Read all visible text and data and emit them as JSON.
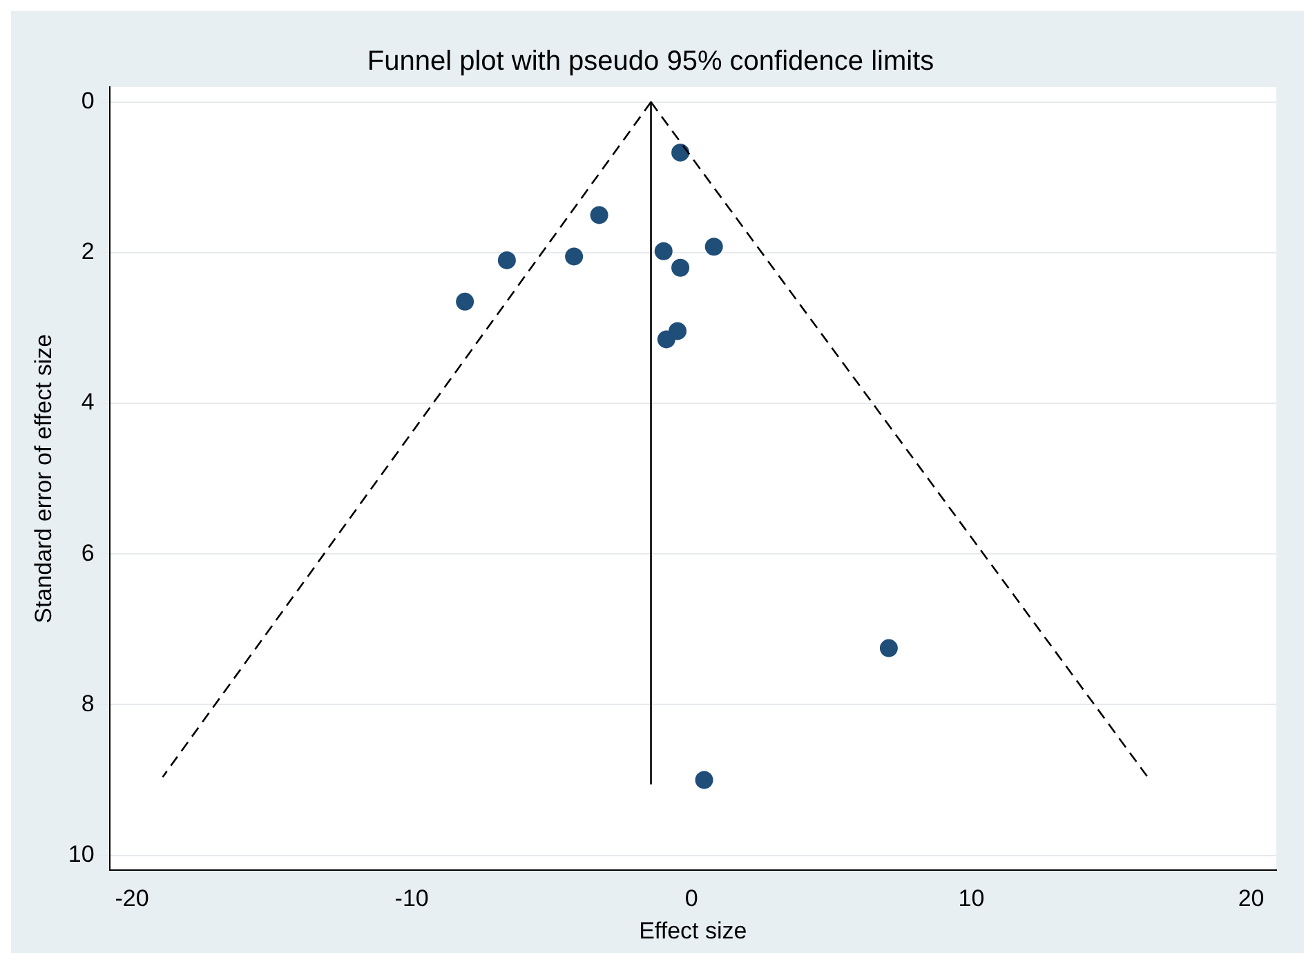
{
  "chart_data": {
    "type": "scatter",
    "title": "Funnel plot with pseudo 95% confidence limits",
    "xlabel": "Effect size",
    "ylabel": "Standard error of effect size",
    "xlim": [
      -20.8,
      20.9
    ],
    "ylim": [
      10.2,
      -0.2
    ],
    "xticks": [
      -20,
      -10,
      0,
      10,
      20
    ],
    "yticks": [
      0,
      2,
      4,
      6,
      8,
      10
    ],
    "grid": "y",
    "legend": false,
    "series": [
      {
        "type": "line",
        "x": [
          -1.45,
          -18.9
        ],
        "values": [
          0,
          8.96
        ],
        "color": "#000000",
        "line_style": "dashed",
        "marker": "none"
      },
      {
        "type": "line",
        "x": [
          -1.45,
          16.3
        ],
        "values": [
          0,
          8.96
        ],
        "color": "#000000",
        "line_style": "dashed",
        "marker": "none"
      },
      {
        "type": "line",
        "x": [
          -1.45,
          -1.45
        ],
        "values": [
          0,
          9.05
        ],
        "color": "#000000",
        "line_style": "solid",
        "marker": "none"
      },
      {
        "type": "scatter",
        "x": [
          -0.4,
          -3.3,
          -6.6,
          -4.2,
          -8.1,
          -1.0,
          0.8,
          -0.4,
          -0.5,
          -0.9,
          7.05,
          0.45
        ],
        "values": [
          0.67,
          1.5,
          2.1,
          2.05,
          2.65,
          1.98,
          1.92,
          2.2,
          3.04,
          3.15,
          7.25,
          9.0
        ],
        "color": "#1f4e79",
        "marker": "circle"
      }
    ]
  }
}
